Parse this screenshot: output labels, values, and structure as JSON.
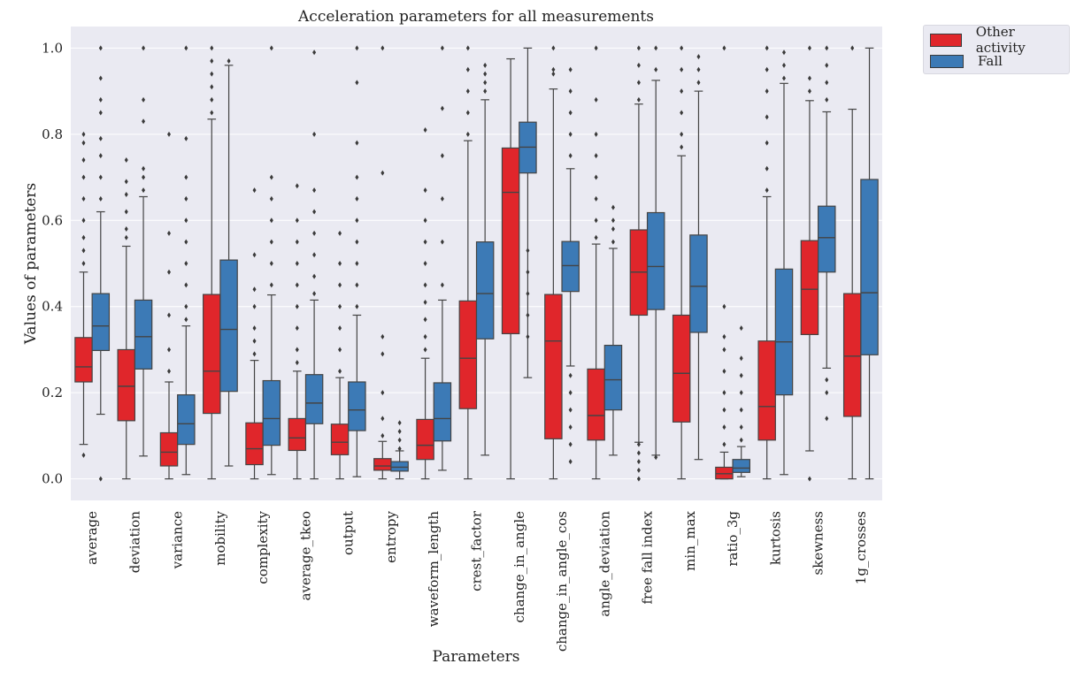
{
  "chart_data": {
    "type": "box",
    "title": "Acceleration parameters for all measurements",
    "xlabel": "Parameters",
    "ylabel": "Values of parameters",
    "ylim": [
      -0.05,
      1.05
    ],
    "yticks": [
      0.0,
      0.2,
      0.4,
      0.6,
      0.8,
      1.0
    ],
    "yticklabels": [
      "0.0",
      "0.2",
      "0.4",
      "0.6",
      "0.8",
      "1.0"
    ],
    "grid": true,
    "legend_position": "outside-top-right",
    "categories": [
      "average",
      "deviation",
      "variance",
      "mobility",
      "complexity",
      "average_tkeo",
      "output",
      "entropy",
      "waveform_length",
      "crest_factor",
      "change_in_angle",
      "change_in_angle_cos",
      "angle_deviation",
      "free fall index",
      "min_max",
      "ratio_3g",
      "kurtosis",
      "skewness",
      "1g_crosses"
    ],
    "series": [
      {
        "name": "Other activity",
        "color": "#e0262b",
        "boxes": [
          {
            "whislo": 0.08,
            "q1": 0.225,
            "med": 0.26,
            "q3": 0.328,
            "whishi": 0.48,
            "fliers": [
              0.055,
              0.5,
              0.53,
              0.56,
              0.6,
              0.65,
              0.7,
              0.74,
              0.78,
              0.8
            ]
          },
          {
            "whislo": 0.0,
            "q1": 0.135,
            "med": 0.215,
            "q3": 0.3,
            "whishi": 0.54,
            "fliers": [
              0.56,
              0.58,
              0.62,
              0.66,
              0.69,
              0.74
            ]
          },
          {
            "whislo": 0.0,
            "q1": 0.03,
            "med": 0.062,
            "q3": 0.107,
            "whishi": 0.225,
            "fliers": [
              0.25,
              0.3,
              0.38,
              0.48,
              0.57,
              0.8
            ]
          },
          {
            "whislo": 0.0,
            "q1": 0.152,
            "med": 0.25,
            "q3": 0.428,
            "whishi": 0.835,
            "fliers": [
              0.85,
              0.88,
              0.91,
              0.94,
              0.97,
              1.0
            ]
          },
          {
            "whislo": 0.0,
            "q1": 0.033,
            "med": 0.07,
            "q3": 0.13,
            "whishi": 0.275,
            "fliers": [
              0.29,
              0.32,
              0.35,
              0.4,
              0.44,
              0.52,
              0.67
            ]
          },
          {
            "whislo": 0.0,
            "q1": 0.066,
            "med": 0.095,
            "q3": 0.14,
            "whishi": 0.25,
            "fliers": [
              0.27,
              0.3,
              0.35,
              0.4,
              0.45,
              0.5,
              0.55,
              0.6,
              0.68
            ]
          },
          {
            "whislo": 0.0,
            "q1": 0.056,
            "med": 0.085,
            "q3": 0.127,
            "whishi": 0.235,
            "fliers": [
              0.25,
              0.3,
              0.35,
              0.4,
              0.45,
              0.5,
              0.57
            ]
          },
          {
            "whislo": 0.0,
            "q1": 0.02,
            "med": 0.03,
            "q3": 0.047,
            "whishi": 0.087,
            "fliers": [
              0.1,
              0.14,
              0.2,
              0.29,
              0.33,
              0.71,
              1.0
            ]
          },
          {
            "whislo": 0.0,
            "q1": 0.045,
            "med": 0.078,
            "q3": 0.138,
            "whishi": 0.28,
            "fliers": [
              0.3,
              0.33,
              0.37,
              0.41,
              0.45,
              0.5,
              0.55,
              0.6,
              0.67,
              0.81
            ]
          },
          {
            "whislo": 0.0,
            "q1": 0.163,
            "med": 0.28,
            "q3": 0.413,
            "whishi": 0.785,
            "fliers": [
              0.8,
              0.85,
              0.9,
              0.95,
              1.0
            ]
          },
          {
            "whislo": 0.0,
            "q1": 0.337,
            "med": 0.665,
            "q3": 0.768,
            "whishi": 0.975,
            "fliers": []
          },
          {
            "whislo": 0.0,
            "q1": 0.093,
            "med": 0.32,
            "q3": 0.428,
            "whishi": 0.905,
            "fliers": [
              0.94,
              0.95,
              1.0
            ]
          },
          {
            "whislo": 0.0,
            "q1": 0.09,
            "med": 0.147,
            "q3": 0.255,
            "whishi": 0.545,
            "fliers": [
              0.56,
              0.6,
              0.65,
              0.7,
              0.75,
              0.8,
              0.88,
              1.0
            ]
          },
          {
            "whislo": 0.085,
            "q1": 0.38,
            "med": 0.48,
            "q3": 0.578,
            "whishi": 0.87,
            "fliers": [
              0.0,
              0.02,
              0.04,
              0.06,
              0.08,
              0.88,
              0.92,
              0.96,
              1.0
            ]
          },
          {
            "whislo": 0.0,
            "q1": 0.132,
            "med": 0.245,
            "q3": 0.38,
            "whishi": 0.75,
            "fliers": [
              0.77,
              0.8,
              0.85,
              0.9,
              0.95,
              1.0
            ]
          },
          {
            "whislo": 0.0,
            "q1": 0.0,
            "med": 0.012,
            "q3": 0.027,
            "whishi": 0.062,
            "fliers": [
              0.08,
              0.12,
              0.16,
              0.2,
              0.25,
              0.3,
              0.33,
              0.4,
              1.0
            ]
          },
          {
            "whislo": 0.0,
            "q1": 0.09,
            "med": 0.168,
            "q3": 0.32,
            "whishi": 0.655,
            "fliers": [
              0.67,
              0.72,
              0.78,
              0.84,
              0.9,
              0.95,
              1.0
            ]
          },
          {
            "whislo": 0.065,
            "q1": 0.335,
            "med": 0.44,
            "q3": 0.553,
            "whishi": 0.878,
            "fliers": [
              0.0,
              0.9,
              0.93,
              1.0
            ]
          },
          {
            "whislo": 0.0,
            "q1": 0.145,
            "med": 0.285,
            "q3": 0.43,
            "whishi": 0.858,
            "fliers": [
              1.0
            ]
          }
        ]
      },
      {
        "name": "Fall",
        "color": "#3c7ab6",
        "boxes": [
          {
            "whislo": 0.15,
            "q1": 0.298,
            "med": 0.355,
            "q3": 0.43,
            "whishi": 0.62,
            "fliers": [
              0.0,
              0.65,
              0.7,
              0.75,
              0.79,
              0.85,
              0.88,
              0.93,
              1.0
            ]
          },
          {
            "whislo": 0.053,
            "q1": 0.255,
            "med": 0.33,
            "q3": 0.415,
            "whishi": 0.655,
            "fliers": [
              0.67,
              0.7,
              0.72,
              0.83,
              0.88,
              1.0
            ]
          },
          {
            "whislo": 0.01,
            "q1": 0.08,
            "med": 0.128,
            "q3": 0.195,
            "whishi": 0.355,
            "fliers": [
              0.37,
              0.4,
              0.45,
              0.5,
              0.55,
              0.6,
              0.65,
              0.7,
              0.79,
              1.0
            ]
          },
          {
            "whislo": 0.03,
            "q1": 0.203,
            "med": 0.347,
            "q3": 0.508,
            "whishi": 0.96,
            "fliers": [
              0.97
            ]
          },
          {
            "whislo": 0.01,
            "q1": 0.078,
            "med": 0.14,
            "q3": 0.228,
            "whishi": 0.427,
            "fliers": [
              0.45,
              0.5,
              0.55,
              0.6,
              0.65,
              0.7,
              1.0
            ]
          },
          {
            "whislo": 0.0,
            "q1": 0.128,
            "med": 0.176,
            "q3": 0.242,
            "whishi": 0.415,
            "fliers": [
              0.43,
              0.47,
              0.52,
              0.57,
              0.62,
              0.67,
              0.8,
              0.99
            ]
          },
          {
            "whislo": 0.005,
            "q1": 0.112,
            "med": 0.16,
            "q3": 0.225,
            "whishi": 0.38,
            "fliers": [
              0.4,
              0.45,
              0.5,
              0.55,
              0.6,
              0.65,
              0.7,
              0.78,
              0.92,
              1.0
            ]
          },
          {
            "whislo": 0.0,
            "q1": 0.018,
            "med": 0.027,
            "q3": 0.04,
            "whishi": 0.065,
            "fliers": [
              0.07,
              0.09,
              0.11,
              0.13
            ]
          },
          {
            "whislo": 0.02,
            "q1": 0.088,
            "med": 0.14,
            "q3": 0.223,
            "whishi": 0.415,
            "fliers": [
              0.45,
              0.55,
              0.65,
              0.75,
              0.86,
              1.0
            ]
          },
          {
            "whislo": 0.055,
            "q1": 0.325,
            "med": 0.43,
            "q3": 0.55,
            "whishi": 0.88,
            "fliers": [
              0.9,
              0.92,
              0.94,
              0.96
            ]
          },
          {
            "whislo": 0.235,
            "q1": 0.71,
            "med": 0.77,
            "q3": 0.828,
            "whishi": 1.0,
            "fliers": [
              0.33,
              0.38,
              0.43,
              0.48,
              0.53
            ]
          },
          {
            "whislo": 0.262,
            "q1": 0.435,
            "med": 0.495,
            "q3": 0.551,
            "whishi": 0.72,
            "fliers": [
              0.04,
              0.08,
              0.12,
              0.16,
              0.2,
              0.24,
              0.75,
              0.8,
              0.85,
              0.9,
              0.95
            ]
          },
          {
            "whislo": 0.055,
            "q1": 0.16,
            "med": 0.23,
            "q3": 0.31,
            "whishi": 0.535,
            "fliers": [
              0.55,
              0.58,
              0.6,
              0.63
            ]
          },
          {
            "whislo": 0.055,
            "q1": 0.393,
            "med": 0.493,
            "q3": 0.618,
            "whishi": 0.925,
            "fliers": [
              0.05,
              0.95,
              1.0
            ]
          },
          {
            "whislo": 0.045,
            "q1": 0.34,
            "med": 0.447,
            "q3": 0.566,
            "whishi": 0.9,
            "fliers": [
              0.92,
              0.95,
              0.98
            ]
          },
          {
            "whislo": 0.005,
            "q1": 0.015,
            "med": 0.025,
            "q3": 0.045,
            "whishi": 0.075,
            "fliers": [
              0.09,
              0.12,
              0.16,
              0.2,
              0.24,
              0.28,
              0.35
            ]
          },
          {
            "whislo": 0.01,
            "q1": 0.195,
            "med": 0.318,
            "q3": 0.487,
            "whishi": 0.918,
            "fliers": [
              0.93,
              0.96,
              0.99
            ]
          },
          {
            "whislo": 0.257,
            "q1": 0.48,
            "med": 0.56,
            "q3": 0.633,
            "whishi": 0.852,
            "fliers": [
              0.14,
              0.2,
              0.23,
              0.88,
              0.92,
              0.96,
              1.0
            ]
          },
          {
            "whislo": 0.0,
            "q1": 0.288,
            "med": 0.432,
            "q3": 0.695,
            "whishi": 1.0,
            "fliers": []
          }
        ]
      }
    ]
  }
}
